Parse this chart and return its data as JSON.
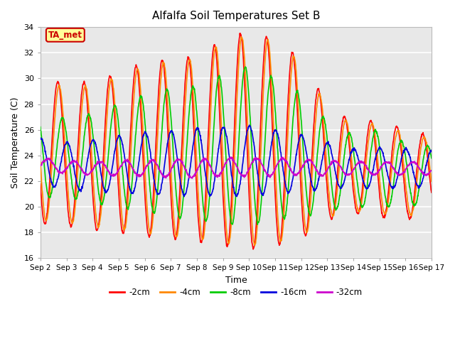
{
  "title": "Alfalfa Soil Temperatures Set B",
  "xlabel": "Time",
  "ylabel": "Soil Temperature (C)",
  "ylim": [
    16,
    34
  ],
  "xlim_days": [
    0,
    15
  ],
  "fig_bg_color": "#ffffff",
  "plot_bg_color": "#e8e8e8",
  "grid_color": "white",
  "annotation_text": "TA_met",
  "annotation_color": "#cc0000",
  "annotation_bg": "#ffff99",
  "annotation_border": "#cc0000",
  "tick_labels": [
    "Sep 2",
    "Sep 3",
    "Sep 4",
    "Sep 5",
    "Sep 6",
    "Sep 7",
    "Sep 8",
    "Sep 9",
    "Sep 10",
    "Sep 11",
    "Sep 12",
    "Sep 13",
    "Sep 14",
    "Sep 15",
    "Sep 16",
    "Sep 17"
  ],
  "tick_positions": [
    0,
    1,
    2,
    3,
    4,
    5,
    6,
    7,
    8,
    9,
    10,
    11,
    12,
    13,
    14,
    15
  ],
  "colors": {
    "-2cm": "#ff0000",
    "-4cm": "#ff8800",
    "-8cm": "#00cc00",
    "-16cm": "#0000dd",
    "-32cm": "#cc00cc"
  },
  "amplitudes_by_day": {
    "-2cm": [
      5.8,
      5.5,
      5.8,
      6.2,
      6.8,
      7.0,
      7.2,
      8.0,
      8.5,
      8.0,
      7.0,
      4.5,
      3.5,
      3.8,
      3.5,
      3.0
    ],
    "-4cm": [
      5.5,
      5.2,
      5.5,
      5.9,
      6.5,
      6.8,
      7.0,
      7.8,
      8.2,
      7.8,
      6.8,
      4.3,
      3.3,
      3.5,
      3.2,
      2.8
    ],
    "-8cm": [
      3.5,
      3.0,
      3.5,
      4.0,
      4.5,
      5.0,
      5.2,
      5.8,
      6.2,
      5.5,
      4.8,
      3.5,
      2.8,
      3.0,
      2.5,
      2.2
    ],
    "-16cm": [
      1.8,
      1.8,
      2.0,
      2.2,
      2.4,
      2.5,
      2.6,
      2.7,
      2.7,
      2.5,
      2.2,
      1.8,
      1.5,
      1.6,
      1.5,
      1.4
    ],
    "-32cm": [
      0.5,
      0.5,
      0.5,
      0.6,
      0.6,
      0.7,
      0.7,
      0.7,
      0.7,
      0.7,
      0.6,
      0.6,
      0.5,
      0.5,
      0.5,
      0.5
    ]
  },
  "means_by_day": {
    "-2cm": [
      24.5,
      24.0,
      24.0,
      24.2,
      24.5,
      24.5,
      24.5,
      25.0,
      25.2,
      25.0,
      24.5,
      23.5,
      23.0,
      23.0,
      22.5,
      22.5
    ],
    "-4cm": [
      24.5,
      24.0,
      24.0,
      24.2,
      24.5,
      24.5,
      24.5,
      25.0,
      25.2,
      25.0,
      24.5,
      23.5,
      23.0,
      23.0,
      22.5,
      22.5
    ],
    "-8cm": [
      24.2,
      23.8,
      23.8,
      24.0,
      24.2,
      24.2,
      24.2,
      24.5,
      24.8,
      24.5,
      24.0,
      23.2,
      22.8,
      23.0,
      22.5,
      22.5
    ],
    "-16cm": [
      23.5,
      23.2,
      23.2,
      23.3,
      23.4,
      23.4,
      23.5,
      23.5,
      23.6,
      23.5,
      23.4,
      23.2,
      23.0,
      23.0,
      23.0,
      23.0
    ],
    "-32cm": [
      23.3,
      23.1,
      23.0,
      23.0,
      23.0,
      23.0,
      23.0,
      23.1,
      23.1,
      23.1,
      23.1,
      23.0,
      23.0,
      23.0,
      23.0,
      23.0
    ]
  },
  "phase_lags": {
    "-2cm": 0.0,
    "-4cm": 0.05,
    "-8cm": 0.18,
    "-16cm": 0.35,
    "-32cm": 0.62
  },
  "lw": 1.2
}
